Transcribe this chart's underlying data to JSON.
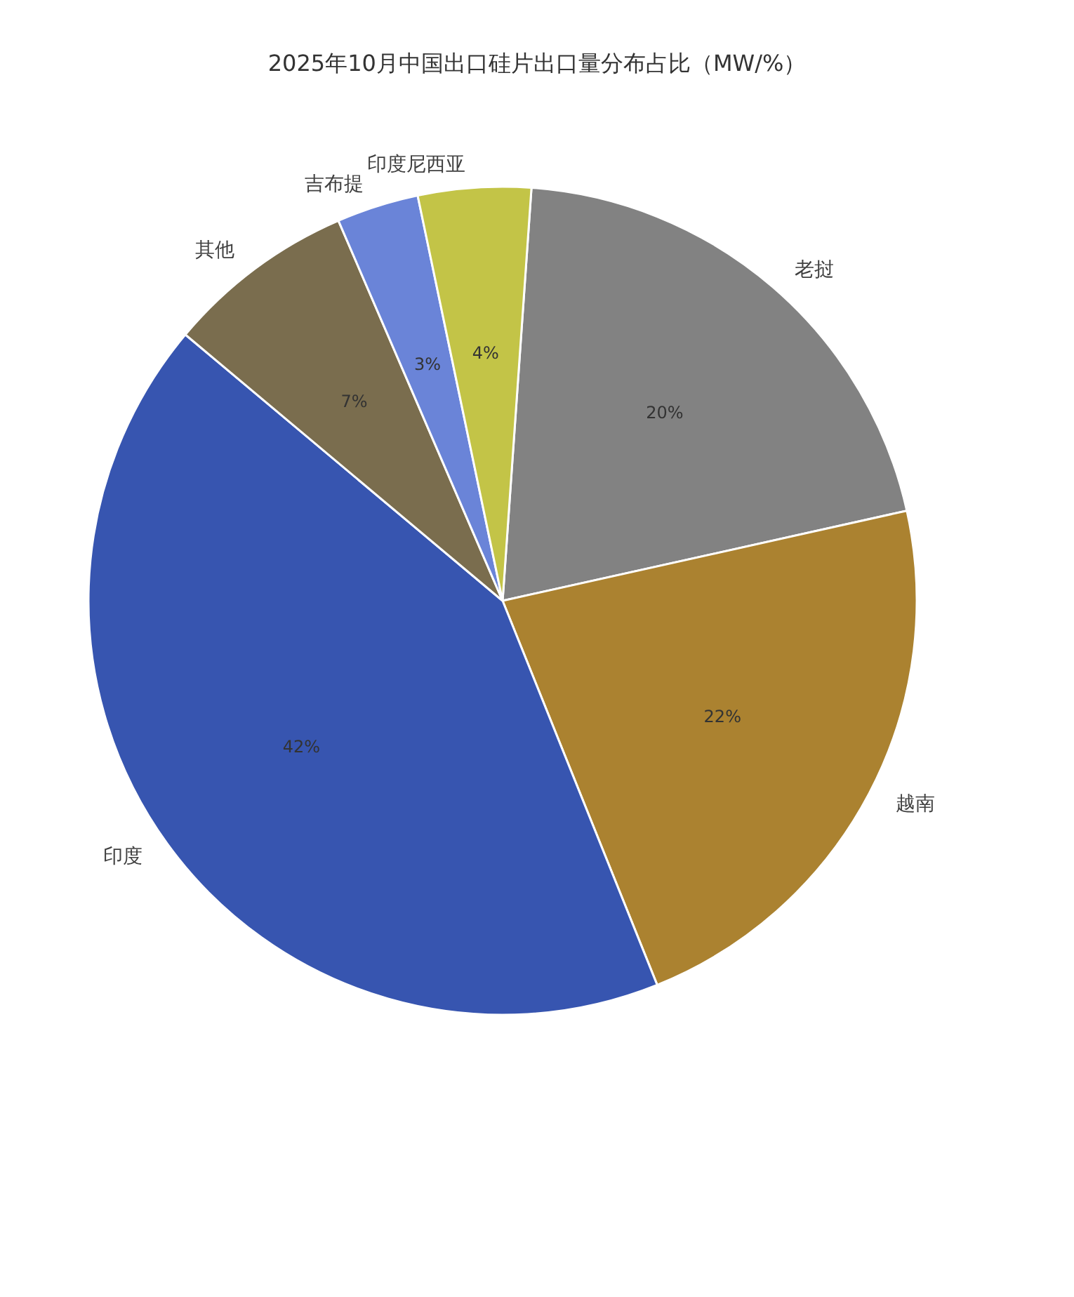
{
  "chart_data": {
    "type": "pie",
    "title": "2025年10月中国出口硅片出口量分布占比（MW/%）",
    "categories": [
      "老挝",
      "越南",
      "印度",
      "其他",
      "吉布提",
      "印度尼西亚"
    ],
    "values": [
      20.4,
      22.4,
      42.2,
      7.4,
      3.2,
      4.4
    ],
    "colors": [
      "#828282",
      "#ab8230",
      "#3755b0",
      "#7a6d4e",
      "#6a84d8",
      "#c3c447"
    ],
    "value_labels": [
      "20%",
      "22%",
      "42%",
      "7%",
      "3%",
      "4%"
    ]
  }
}
